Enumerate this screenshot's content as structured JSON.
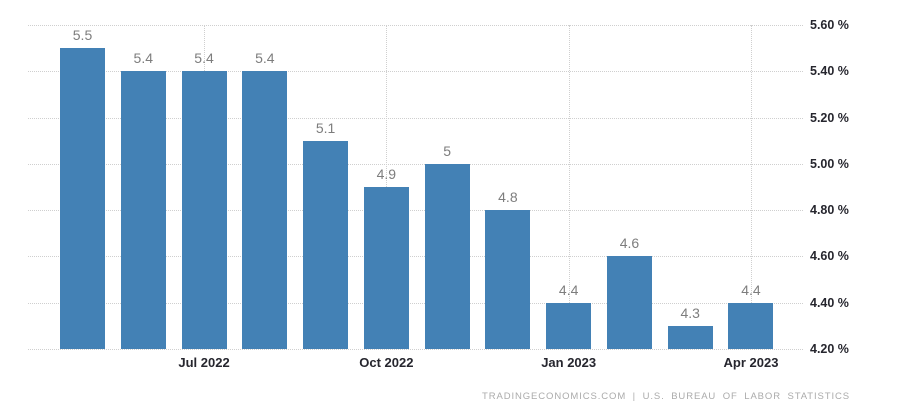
{
  "chart_data": {
    "type": "bar",
    "title": "",
    "values": [
      5.5,
      5.4,
      5.4,
      5.4,
      5.1,
      4.9,
      5,
      4.8,
      4.4,
      4.6,
      4.3,
      4.4
    ],
    "bar_labels": [
      "5.5",
      "5.4",
      "5.4",
      "5.4",
      "5.1",
      "4.9",
      "5",
      "4.8",
      "4.4",
      "4.6",
      "4.3",
      "4.4"
    ],
    "x_ticks": [
      {
        "bar_index": 2,
        "label": "Jul 2022"
      },
      {
        "bar_index": 5,
        "label": "Oct 2022"
      },
      {
        "bar_index": 8,
        "label": "Jan 2023"
      },
      {
        "bar_index": 11,
        "label": "Apr 2023"
      }
    ],
    "y_ticks": [
      {
        "value": 5.6,
        "label": "5.60 %"
      },
      {
        "value": 5.4,
        "label": "5.40 %"
      },
      {
        "value": 5.2,
        "label": "5.20 %"
      },
      {
        "value": 5.0,
        "label": "5.00 %"
      },
      {
        "value": 4.8,
        "label": "4.80 %"
      },
      {
        "value": 4.6,
        "label": "4.60 %"
      },
      {
        "value": 4.4,
        "label": "4.40 %"
      },
      {
        "value": 4.2,
        "label": "4.20 %"
      }
    ],
    "ylim": [
      4.2,
      5.6
    ],
    "grid": "dotted",
    "legend": "none",
    "xlabel": "",
    "ylabel": ""
  },
  "colors": {
    "bar": "#4381b5",
    "grid": "#cfcfcf",
    "value_label": "#7d7d7d",
    "axis_label": "#26262e",
    "footer": "#ababab",
    "background": "#ffffff"
  },
  "footer": {
    "text": "TRADINGECONOMICS.COM | U.S. BUREAU OF LABOR STATISTICS"
  }
}
